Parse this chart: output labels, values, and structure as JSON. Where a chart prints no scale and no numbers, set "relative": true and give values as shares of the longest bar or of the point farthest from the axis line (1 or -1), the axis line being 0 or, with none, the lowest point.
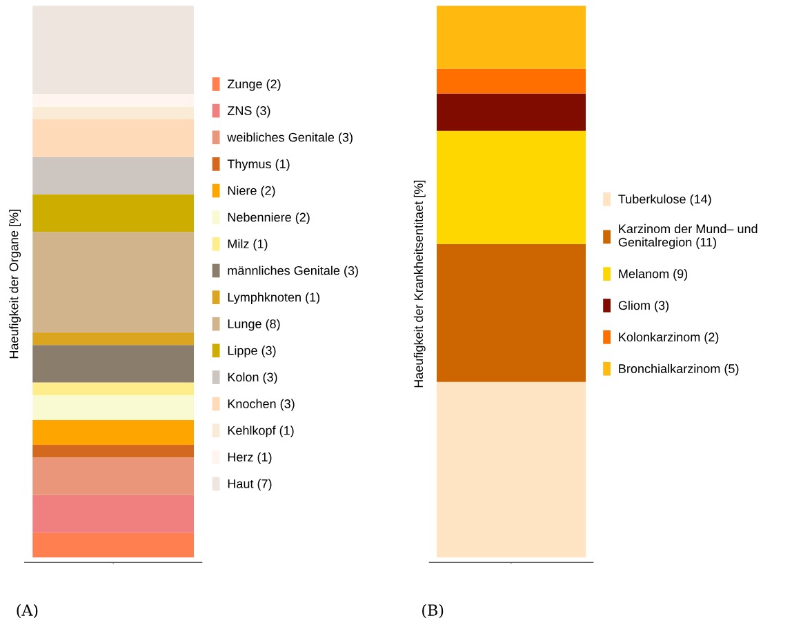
{
  "chart_data": [
    {
      "type": "bar",
      "stacked": true,
      "relative": true,
      "categories": [
        null
      ],
      "ylabel": "Haeufigkeit der Organe [%]",
      "legend": "right",
      "annotations": [
        "(A)"
      ],
      "series": [
        {
          "name": "Zunge (2)",
          "color": "#ff7f50",
          "values": [
            0.045
          ]
        },
        {
          "name": "ZNS (3)",
          "color": "#f08080",
          "values": [
            0.068
          ]
        },
        {
          "name": "weibliches Genitale (3)",
          "color": "#e9967a",
          "values": [
            0.068
          ]
        },
        {
          "name": "Thymus (1)",
          "color": "#d2691e",
          "values": [
            0.023
          ]
        },
        {
          "name": "Niere (2)",
          "color": "#ffa500",
          "values": [
            0.045
          ]
        },
        {
          "name": "Nebenniere (2)",
          "color": "#fafad2",
          "values": [
            0.045
          ]
        },
        {
          "name": "Milz (1)",
          "color": "#ffec8b",
          "values": [
            0.023
          ]
        },
        {
          "name": "männliches Genitale (3)",
          "color": "#8b7d6b",
          "values": [
            0.068
          ]
        },
        {
          "name": "Lymphknoten (1)",
          "color": "#daa520",
          "values": [
            0.023
          ]
        },
        {
          "name": "Lunge (8)",
          "color": "#d2b48c",
          "values": [
            0.182
          ]
        },
        {
          "name": "Lippe (3)",
          "color": "#cdad00",
          "values": [
            0.068
          ]
        },
        {
          "name": "Kolon (3)",
          "color": "#cdc5bf",
          "values": [
            0.068
          ]
        },
        {
          "name": "Knochen (3)",
          "color": "#ffdab9",
          "values": [
            0.068
          ]
        },
        {
          "name": "Kehlkopf (1)",
          "color": "#faebd7",
          "values": [
            0.023
          ]
        },
        {
          "name": "Herz (1)",
          "color": "#fff5ee",
          "values": [
            0.023
          ]
        },
        {
          "name": "Haut (7)",
          "color": "#eee5de",
          "values": [
            0.16
          ]
        }
      ]
    },
    {
      "type": "bar",
      "stacked": true,
      "relative": true,
      "categories": [
        null
      ],
      "ylabel": "Haeufigkeit der Krankheitsentitaet [%]",
      "legend": "right",
      "annotations": [
        "(B)"
      ],
      "series": [
        {
          "name": "Tuberkulose (14)",
          "color": "#ffe4c4",
          "values": [
            0.318
          ]
        },
        {
          "name": "Karzinom der Mund– und\nGenitalregion (11)",
          "color": "#cd6600",
          "values": [
            0.25
          ]
        },
        {
          "name": "Melanom (9)",
          "color": "#ffd700",
          "values": [
            0.205
          ]
        },
        {
          "name": "Gliom (3)",
          "color": "#800c00",
          "values": [
            0.068
          ]
        },
        {
          "name": "Kolonkarzinom (2)",
          "color": "#ff6f00",
          "values": [
            0.045
          ]
        },
        {
          "name": "Bronchialkarzinom (5)",
          "color": "#ffb90f",
          "values": [
            0.114
          ]
        }
      ]
    }
  ]
}
